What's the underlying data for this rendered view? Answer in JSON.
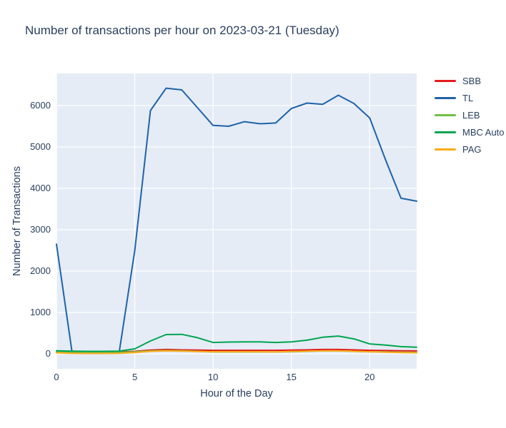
{
  "title": "Number of transactions per hour on 2023-03-21 (Tuesday)",
  "chart_data": {
    "type": "line",
    "title": "Number of transactions per hour on 2023-03-21 (Tuesday)",
    "xlabel": "Hour of the Day",
    "ylabel": "Number of Transactions",
    "x": [
      0,
      1,
      2,
      3,
      4,
      5,
      6,
      7,
      8,
      9,
      10,
      11,
      12,
      13,
      14,
      15,
      16,
      17,
      18,
      19,
      20,
      21,
      22,
      23
    ],
    "xticks": [
      0,
      5,
      10,
      15,
      20
    ],
    "yticks": [
      0,
      1000,
      2000,
      3000,
      4000,
      5000,
      6000
    ],
    "xlim": [
      0,
      23
    ],
    "ylim": [
      -362,
      6776
    ],
    "grid": true,
    "legend_position": "right",
    "colors": {
      "plot_background": "#e5ecf6",
      "grid": "#ffffff",
      "text": "#2a3f5f"
    },
    "series": [
      {
        "name": "SBB",
        "color": "#e41a1c",
        "values": [
          70,
          45,
          40,
          40,
          45,
          60,
          90,
          105,
          95,
          90,
          85,
          85,
          85,
          85,
          85,
          90,
          95,
          105,
          105,
          95,
          85,
          80,
          75,
          70
        ]
      },
      {
        "name": "TL",
        "color": "#1f63a8",
        "values": [
          2650,
          30,
          25,
          25,
          30,
          2500,
          5880,
          6420,
          6380,
          5950,
          5520,
          5500,
          5610,
          5560,
          5580,
          5930,
          6060,
          6030,
          6250,
          6050,
          5700,
          4700,
          3760,
          3690
        ]
      },
      {
        "name": "LEB",
        "color": "#70bf44",
        "values": [
          45,
          35,
          30,
          30,
          35,
          50,
          70,
          80,
          75,
          60,
          45,
          45,
          45,
          45,
          45,
          50,
          60,
          70,
          70,
          60,
          50,
          45,
          40,
          35
        ]
      },
      {
        "name": "MBC Auto",
        "color": "#00a550",
        "values": [
          75,
          65,
          60,
          60,
          65,
          120,
          310,
          465,
          470,
          390,
          275,
          285,
          290,
          290,
          275,
          290,
          330,
          400,
          430,
          360,
          240,
          210,
          175,
          160
        ]
      },
      {
        "name": "PAG",
        "color": "#fbab18",
        "values": [
          25,
          10,
          8,
          8,
          10,
          30,
          60,
          70,
          65,
          55,
          50,
          50,
          50,
          50,
          45,
          55,
          65,
          70,
          70,
          60,
          50,
          40,
          30,
          25
        ]
      }
    ]
  }
}
